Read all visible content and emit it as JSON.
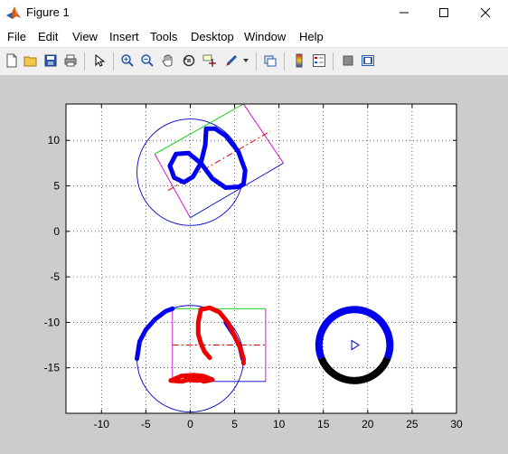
{
  "window": {
    "title": "Figure 1",
    "controls": [
      "minimize",
      "maximize",
      "close"
    ]
  },
  "menu": [
    "File",
    "Edit",
    "View",
    "Insert",
    "Tools",
    "Desktop",
    "Window",
    "Help"
  ],
  "toolbar": {
    "buttons": [
      "new-figure",
      "open-file",
      "save",
      "print",
      "edit-plot",
      "zoom-in",
      "zoom-out",
      "pan",
      "rotate-3d",
      "data-cursor",
      "brush",
      "link-plot",
      "colorbar",
      "legend",
      "hide-plot-tools",
      "show-plot-tools"
    ]
  },
  "chart_data": {
    "type": "line",
    "xlim": [
      -14,
      30
    ],
    "ylim": [
      -20,
      14
    ],
    "xticks": [
      -10,
      -5,
      0,
      5,
      10,
      15,
      20,
      25,
      30
    ],
    "yticks": [
      10,
      5,
      0,
      -5,
      -10,
      -15
    ],
    "grid": true,
    "grid_style": "dotted",
    "shapes": {
      "top_circle": {
        "cx": 0,
        "cy": 6.5,
        "r": 6,
        "color": "#0000c8"
      },
      "top_rect": {
        "points": [
          [
            -4,
            8.5
          ],
          [
            6,
            14
          ],
          [
            10.5,
            7.5
          ],
          [
            0,
            1.5
          ]
        ],
        "edge_colors": [
          "#00cc00",
          "#cc00cc",
          "#0000c8",
          "#cc00cc"
        ]
      },
      "top_dash": {
        "points": [
          [
            -2.5,
            4.5
          ],
          [
            9,
            11
          ]
        ],
        "color": "#dd0000"
      },
      "bottom_circle": {
        "cx": 0,
        "cy": -14,
        "r": 6,
        "color": "#0000c8"
      },
      "bottom_rect": {
        "x1": -2,
        "x2": 8.5,
        "y1": -8.5,
        "y2": -16.5,
        "edge_colors": [
          "#00cc00",
          "#cc00cc",
          "#0000c8",
          "#cc00cc"
        ]
      },
      "bottom_dash": {
        "points": [
          [
            -2,
            -12.5
          ],
          [
            8.5,
            -12.5
          ]
        ],
        "color": "#dd0000"
      },
      "right_ring": {
        "cx": 18.5,
        "cy": -12.5,
        "r": 4,
        "top_color": "#0000ee",
        "bottom_color": "#000000"
      },
      "triangle_marker": {
        "x": 18.5,
        "y": -12.5,
        "color": "#0000ee"
      }
    },
    "thick_curves": {
      "top_blue": {
        "color": "#0000ee",
        "points": [
          [
            1.8,
            11.3
          ],
          [
            1.7,
            9.5
          ],
          [
            1.2,
            7.5
          ],
          [
            0.3,
            6
          ],
          [
            -0.7,
            5.4
          ],
          [
            -1.8,
            5.9
          ],
          [
            -2.3,
            7.2
          ],
          [
            -1.6,
            8.5
          ],
          [
            -0.2,
            8.6
          ],
          [
            1.2,
            7.5
          ],
          [
            2.5,
            5.8
          ],
          [
            4,
            4.8
          ],
          [
            5.5,
            4.9
          ],
          [
            6,
            5.2
          ],
          [
            6.2,
            6.7
          ],
          [
            5.4,
            8.8
          ],
          [
            4,
            10.5
          ],
          [
            2.8,
            11.3
          ],
          [
            1.8,
            11.3
          ]
        ]
      },
      "bottom_left_blue": {
        "color": "#0000ee",
        "points": [
          [
            -6,
            -14
          ],
          [
            -5.7,
            -12.1
          ],
          [
            -5,
            -10.8
          ],
          [
            -4,
            -9.7
          ],
          [
            -2.8,
            -8.8
          ],
          [
            -2,
            -8.5
          ]
        ]
      },
      "bottom_right_blue": {
        "color": "#0000ee",
        "points": [
          [
            4,
            -10
          ],
          [
            5,
            -11.5
          ],
          [
            5.6,
            -12.7
          ],
          [
            5.9,
            -14
          ]
        ]
      },
      "bottom_red_arc": {
        "color": "#ee0000",
        "points": [
          [
            1.2,
            -8.6
          ],
          [
            2.2,
            -8.4
          ],
          [
            3.3,
            -8.9
          ],
          [
            4.3,
            -10.1
          ],
          [
            5,
            -11.5
          ],
          [
            5.6,
            -12.7
          ],
          [
            6,
            -14
          ],
          [
            6,
            -14.5
          ]
        ]
      },
      "bottom_red_stem": {
        "color": "#ee0000",
        "points": [
          [
            1.2,
            -8.6
          ],
          [
            0.9,
            -10
          ],
          [
            0.9,
            -11.3
          ],
          [
            1.2,
            -12.3
          ],
          [
            1.6,
            -13.2
          ],
          [
            2.2,
            -13.9
          ]
        ]
      },
      "bottom_red_base": {
        "color": "#ee0000",
        "points": [
          [
            -2.2,
            -16.4
          ],
          [
            -1,
            -15.9
          ],
          [
            0.5,
            -15.8
          ],
          [
            1.5,
            -15.9
          ],
          [
            2.5,
            -16.3
          ],
          [
            1.5,
            -16.5
          ],
          [
            0.5,
            -15.9
          ],
          [
            -0.5,
            -16.3
          ],
          [
            0.8,
            -16.4
          ],
          [
            2.2,
            -16.2
          ],
          [
            1,
            -16
          ],
          [
            -1,
            -16.5
          ],
          [
            -2.2,
            -16.4
          ]
        ]
      }
    }
  }
}
